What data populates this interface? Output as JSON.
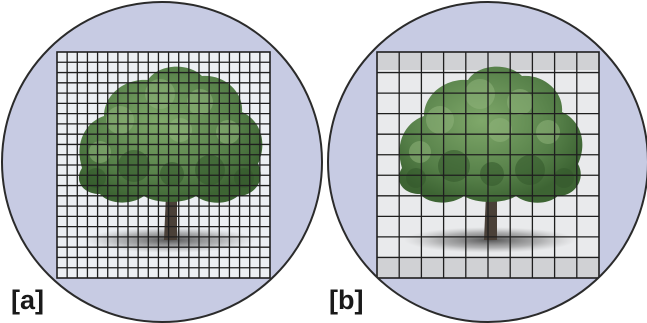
{
  "panels": [
    {
      "label": "[a]",
      "variant": "fine-grid"
    },
    {
      "label": "[b]",
      "variant": "coarse-grid"
    }
  ],
  "colors": {
    "circle_fill": "#c7cbe3",
    "circle_stroke": "#2b2b2b",
    "grid_line": "#1e1e1e",
    "square_fill_a": "#eceff3",
    "square_fill_b": "#e9eaec",
    "border_band_b": "#d0d1d4",
    "foliage_dark": "#3f6b36",
    "foliage_mid": "#5f8c4f",
    "foliage_light": "#8fb37a",
    "trunk": "#4a4038",
    "shadow": "#5a5a5a"
  },
  "icons": {
    "tree": "tree-icon"
  }
}
